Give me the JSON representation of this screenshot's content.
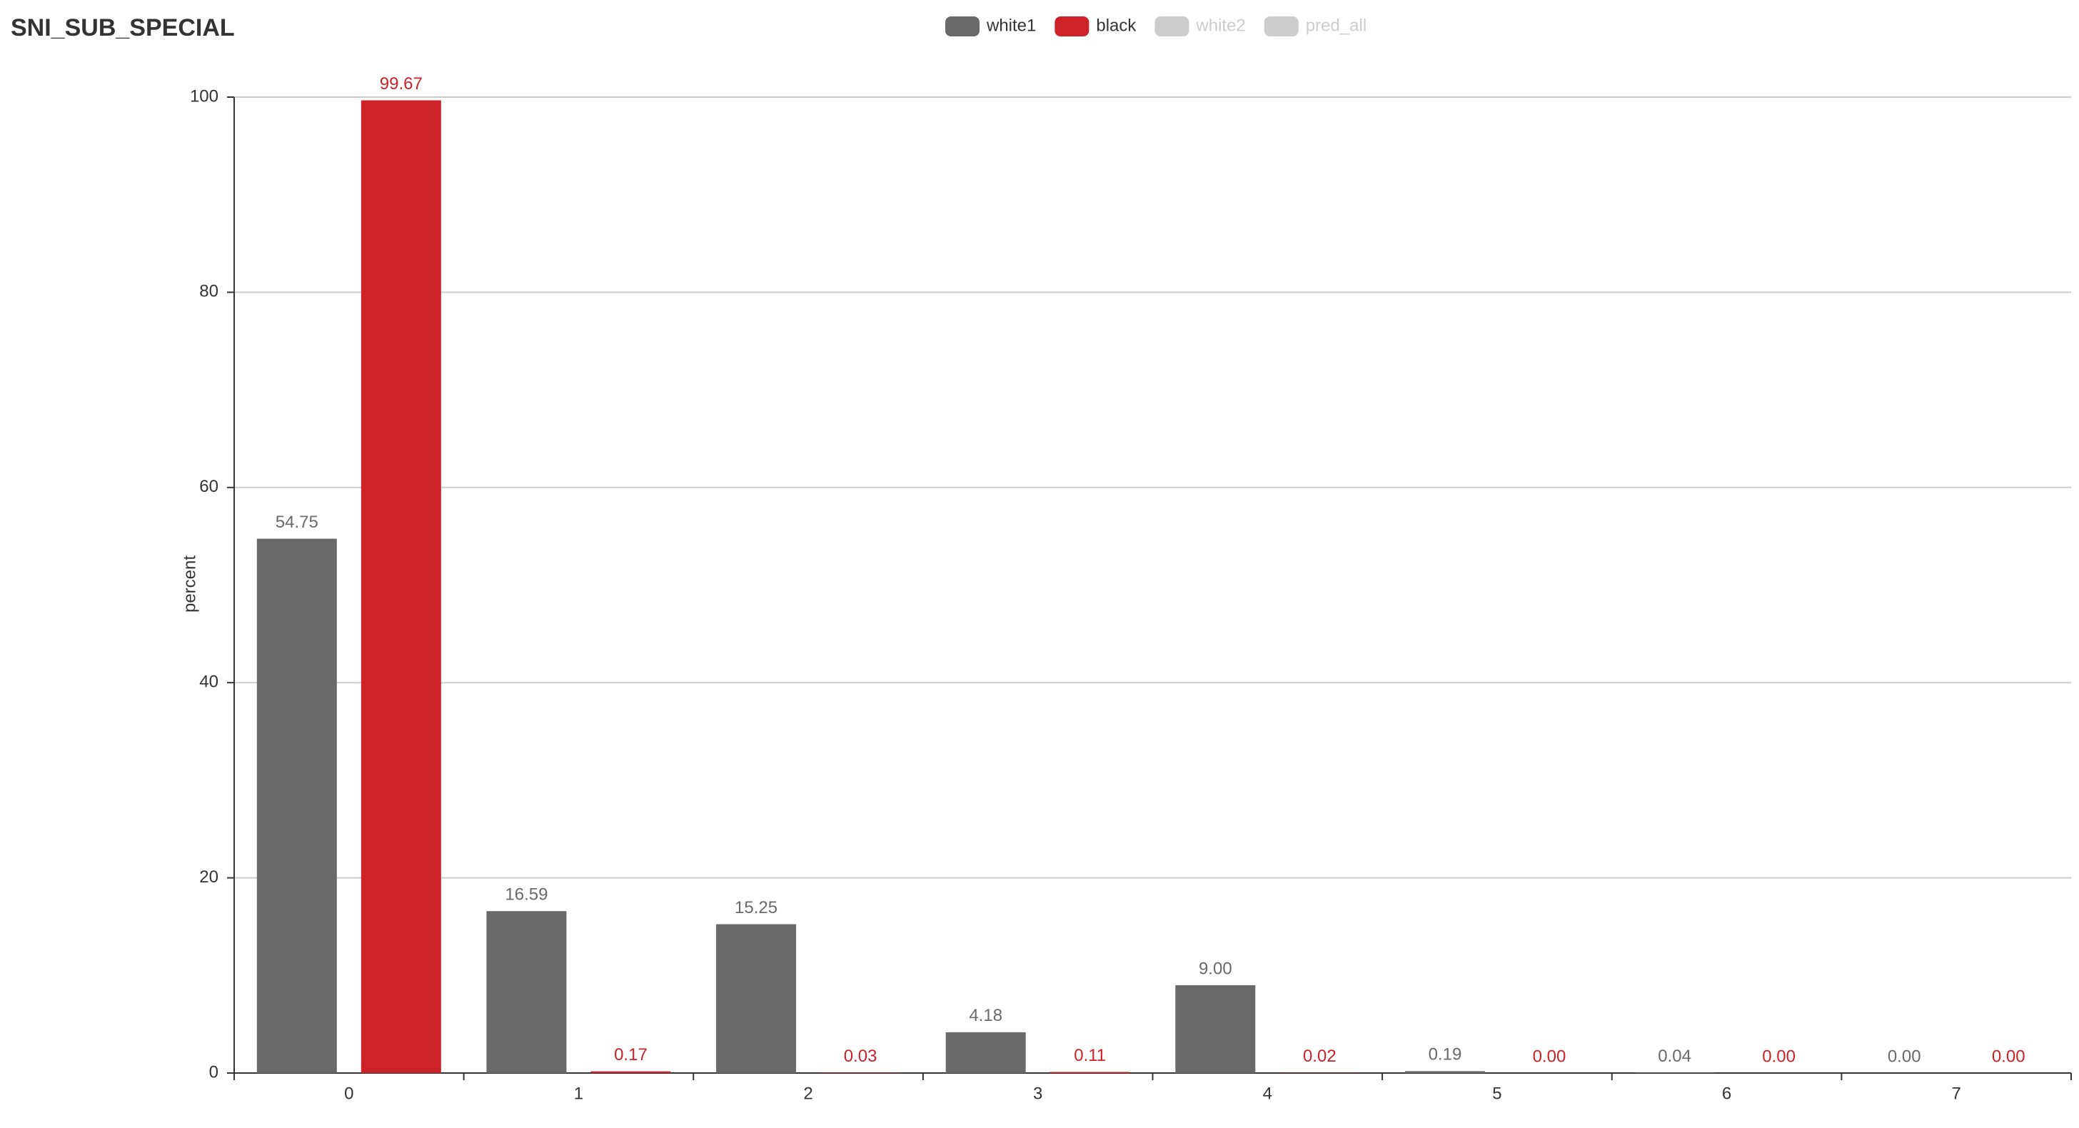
{
  "chart_data": {
    "type": "bar",
    "title": "SNI_SUB_SPECIAL",
    "y_label": "percent",
    "categories": [
      "0",
      "1",
      "2",
      "3",
      "4",
      "5",
      "6",
      "7"
    ],
    "series": [
      {
        "name": "white1",
        "color": "#696969",
        "values": [
          54.75,
          16.59,
          15.25,
          4.18,
          9.0,
          0.19,
          0.04,
          0
        ],
        "value_labels": [
          "54.75",
          "16.59",
          "15.25",
          "4.18",
          "9.00",
          "0.19",
          "0.04",
          "0.00"
        ]
      },
      {
        "name": "black",
        "color": "#cc2228",
        "values": [
          99.67,
          0.17,
          0.03,
          0.11,
          0.02,
          0,
          0,
          0
        ],
        "value_labels": [
          "99.67",
          "0.17",
          "0.03",
          "0.11",
          "0.02",
          "0.00",
          "0.00",
          "0.00"
        ]
      }
    ],
    "inactive_legend": [
      "white2",
      "pred_all"
    ],
    "inactive_color": "#cccccc",
    "ylim": [
      0,
      100
    ],
    "yticks": [
      0,
      20,
      40,
      60,
      80,
      100
    ],
    "grid": true
  }
}
